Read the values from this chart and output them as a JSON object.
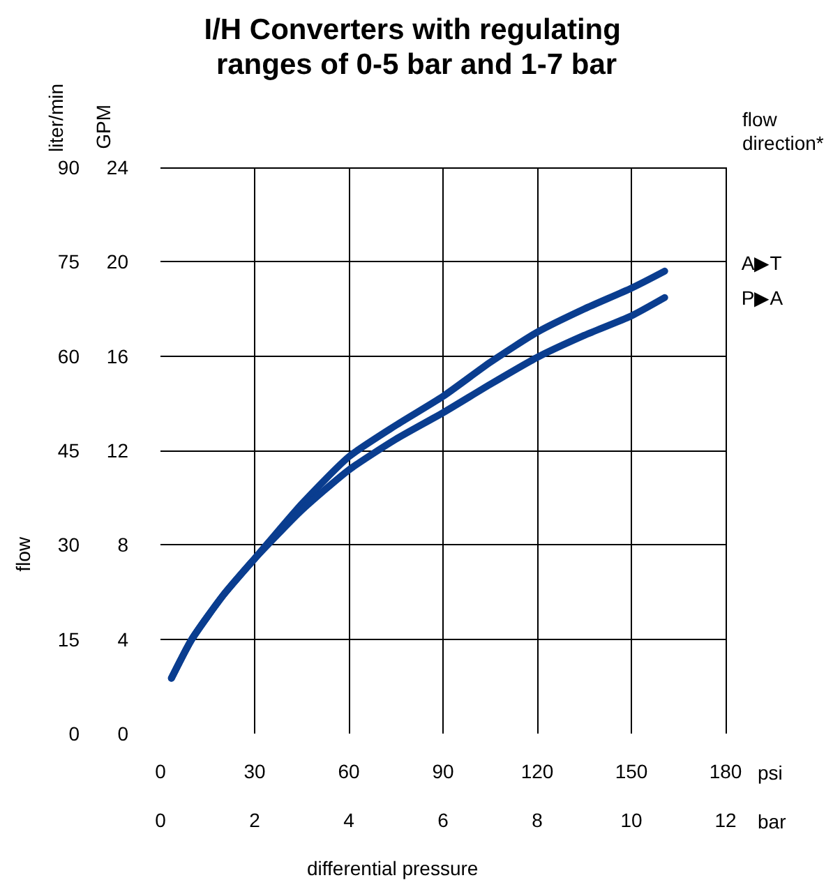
{
  "chart_data": {
    "type": "line",
    "title": "I/H Converters with regulating ranges of 0-5 bar and 1-7 bar",
    "xlabel": "psi",
    "x2label": "bar",
    "ylabel": "liter/min",
    "y2label": "GPM",
    "annotations": [
      "flow",
      "differential pressure",
      "flow direction*"
    ],
    "xlim": [
      0,
      180
    ],
    "xticks": [
      0,
      30,
      60,
      90,
      120,
      150,
      180
    ],
    "x2lim": [
      0,
      12
    ],
    "x2ticks": [
      0,
      2,
      4,
      6,
      8,
      10,
      12
    ],
    "ylim": [
      0,
      90
    ],
    "yticks": [
      0,
      15,
      30,
      45,
      60,
      75,
      90
    ],
    "y2lim": [
      0,
      24
    ],
    "y2ticks": [
      0,
      4,
      8,
      12,
      16,
      20,
      24
    ],
    "grid": true,
    "marker": "none",
    "line_style": "solid",
    "legend": false,
    "series": [
      {
        "name": "A▶T",
        "color": "#0a3d8f",
        "x": [
          3.5,
          10,
          20,
          30,
          45,
          60,
          75,
          90,
          105,
          120,
          135,
          150,
          160.6
        ],
        "values": [
          8.8,
          15,
          22,
          27.8,
          36.5,
          44,
          49,
          53.6,
          59,
          63.8,
          67.5,
          70.8,
          73.5
        ]
      },
      {
        "name": "P▶A",
        "color": "#0a3d8f",
        "x": [
          3.5,
          10,
          20,
          30,
          45,
          60,
          75,
          90,
          105,
          120,
          135,
          150,
          160.6
        ],
        "values": [
          8.8,
          15,
          22,
          27.8,
          35.5,
          41.9,
          46.8,
          51,
          55.5,
          59.8,
          63.3,
          66.4,
          69.3
        ]
      }
    ]
  }
}
